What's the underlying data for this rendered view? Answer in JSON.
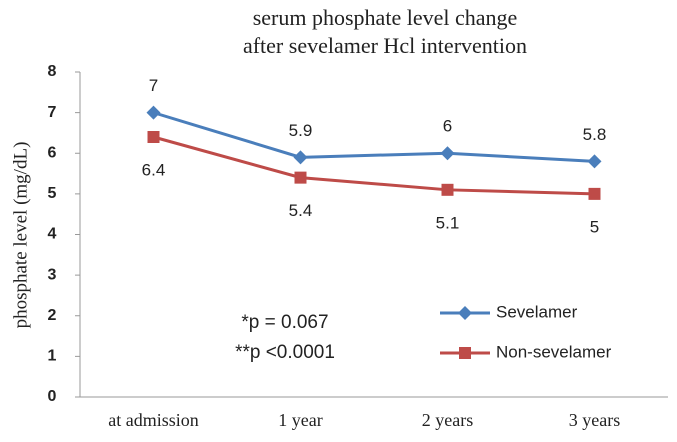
{
  "chart_data": {
    "type": "line",
    "title": [
      "serum phosphate level change",
      "after sevelamer Hcl intervention"
    ],
    "y_label": "phosphate level (mg/dL)",
    "categories": [
      "at admission",
      "1 year",
      "2 years",
      "3 years"
    ],
    "series": [
      {
        "name": "Sevelamer",
        "color": "#4a7ebb",
        "marker": "diamond",
        "values": [
          7,
          5.9,
          6,
          5.8
        ]
      },
      {
        "name": "Non-sevelamer",
        "color": "#be4b48",
        "marker": "square",
        "values": [
          6.4,
          5.4,
          5.1,
          5
        ]
      }
    ],
    "ylim": [
      0,
      8
    ],
    "yticks": [
      0,
      1,
      2,
      3,
      4,
      5,
      6,
      7,
      8
    ],
    "grid": false,
    "annotations": [
      "*p = 0.067",
      "**p <0.0001"
    ],
    "legend": "lower right"
  }
}
